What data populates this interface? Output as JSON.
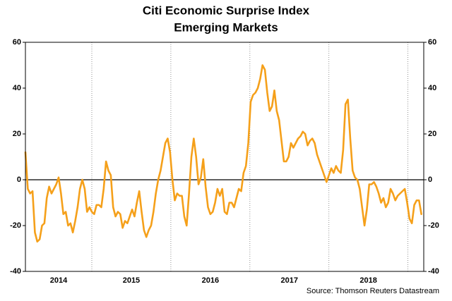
{
  "chart_data": {
    "type": "line",
    "title": "Citi Economic Surprise Index",
    "subtitle": "Emerging Markets",
    "source": "Source: Thomson Reuters Datastream",
    "color": "#f5a01a",
    "x": [
      2014.16,
      2014.19,
      2014.22,
      2014.25,
      2014.28,
      2014.31,
      2014.34,
      2014.37,
      2014.4,
      2014.43,
      2014.46,
      2014.49,
      2014.52,
      2014.55,
      2014.58,
      2014.61,
      2014.64,
      2014.67,
      2014.7,
      2014.73,
      2014.76,
      2014.79,
      2014.82,
      2014.85,
      2014.88,
      2014.91,
      2014.94,
      2014.97,
      2015.0,
      2015.03,
      2015.06,
      2015.09,
      2015.12,
      2015.15,
      2015.18,
      2015.21,
      2015.24,
      2015.27,
      2015.3,
      2015.33,
      2015.36,
      2015.39,
      2015.42,
      2015.45,
      2015.48,
      2015.51,
      2015.54,
      2015.57,
      2015.6,
      2015.63,
      2015.66,
      2015.69,
      2015.72,
      2015.75,
      2015.78,
      2015.81,
      2015.84,
      2015.87,
      2015.9,
      2015.93,
      2015.96,
      2015.99,
      2016.02,
      2016.05,
      2016.08,
      2016.11,
      2016.14,
      2016.17,
      2016.2,
      2016.23,
      2016.26,
      2016.29,
      2016.32,
      2016.35,
      2016.38,
      2016.41,
      2016.44,
      2016.47,
      2016.5,
      2016.53,
      2016.56,
      2016.59,
      2016.62,
      2016.65,
      2016.68,
      2016.71,
      2016.74,
      2016.77,
      2016.8,
      2016.83,
      2016.86,
      2016.89,
      2016.92,
      2016.95,
      2016.98,
      2017.01,
      2017.04,
      2017.07,
      2017.1,
      2017.13,
      2017.16,
      2017.19,
      2017.22,
      2017.25,
      2017.28,
      2017.31,
      2017.34,
      2017.37,
      2017.4,
      2017.43,
      2017.46,
      2017.49,
      2017.52,
      2017.55,
      2017.58,
      2017.61,
      2017.64,
      2017.67,
      2017.7,
      2017.73,
      2017.76,
      2017.79,
      2017.82,
      2017.85,
      2017.88,
      2017.91,
      2017.94,
      2017.97,
      2018.0,
      2018.03,
      2018.06,
      2018.09,
      2018.12,
      2018.15,
      2018.18,
      2018.21,
      2018.24,
      2018.27,
      2018.3,
      2018.33,
      2018.36,
      2018.39,
      2018.42,
      2018.45,
      2018.48,
      2018.51,
      2018.54,
      2018.57,
      2018.6,
      2018.63,
      2018.66,
      2018.69,
      2018.72,
      2018.75,
      2018.78,
      2018.81,
      2018.84,
      2018.87,
      2018.9,
      2018.93,
      2018.96,
      2018.99,
      2019.02,
      2019.05,
      2019.08,
      2019.11,
      2019.14,
      2019.17
    ],
    "values": [
      12,
      -4,
      -6,
      -5,
      -23,
      -27,
      -26,
      -20,
      -19,
      -8,
      -3,
      -6,
      -4,
      -2,
      1,
      -6,
      -15,
      -14,
      -20,
      -19,
      -23,
      -18,
      -12,
      -4,
      0,
      -4,
      -14,
      -12,
      -14,
      -15,
      -11,
      -11,
      -12,
      -4,
      8,
      4,
      2,
      -12,
      -16,
      -14,
      -15,
      -21,
      -18,
      -19,
      -16,
      -13,
      -16,
      -10,
      -5,
      -14,
      -22,
      -25,
      -22,
      -20,
      -14,
      -6,
      0,
      4,
      10,
      16,
      18,
      12,
      0,
      -9,
      -6,
      -7,
      -7,
      -16,
      -20,
      -6,
      10,
      18,
      10,
      -2,
      1,
      9,
      -3,
      -12,
      -15,
      -14,
      -10,
      -4,
      -7,
      -4,
      -14,
      -15,
      -10,
      -10,
      -12,
      -8,
      -4,
      -5,
      3,
      6,
      16,
      34,
      37,
      38,
      40,
      44,
      50,
      48,
      38,
      30,
      32,
      39,
      30,
      26,
      17,
      8,
      8,
      10,
      16,
      14,
      16,
      18,
      19,
      21,
      20,
      15,
      17,
      18,
      16,
      11,
      8,
      5,
      2,
      -1,
      2,
      5,
      3,
      6,
      4,
      3,
      13,
      33,
      35,
      18,
      4,
      1,
      0,
      -4,
      -12,
      -20,
      -13,
      -2,
      -2,
      -1,
      -3,
      -6,
      -10,
      -8,
      -12,
      -10,
      -4,
      -6,
      -9,
      -7,
      -6,
      -5,
      -4,
      -10,
      -17,
      -19,
      -11,
      -9,
      -9,
      -15
    ],
    "xlim": [
      2014.16,
      2019.2
    ],
    "xticks": [
      {
        "value": 2014.58,
        "label": "2014"
      },
      {
        "value": 2015.5,
        "label": "2015"
      },
      {
        "value": 2016.5,
        "label": "2016"
      },
      {
        "value": 2017.5,
        "label": "2017"
      },
      {
        "value": 2018.5,
        "label": "2018"
      }
    ],
    "xgrid": [
      2015,
      2016,
      2017,
      2018,
      2019
    ],
    "ylim": [
      -40,
      60
    ],
    "yticks": [
      -40,
      -20,
      0,
      20,
      40,
      60
    ],
    "y2lim": [
      -40,
      60
    ],
    "y2ticks": [
      -40,
      -20,
      0,
      20,
      40,
      60
    ]
  }
}
